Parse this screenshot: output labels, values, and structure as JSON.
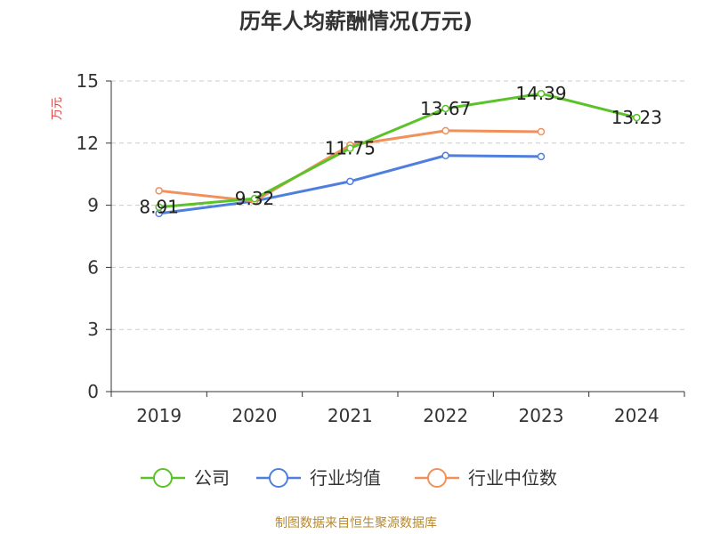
{
  "chart_data": {
    "type": "line",
    "title": "历年人均薪酬情况(万元)",
    "ylabel": "万元",
    "xlabel": "",
    "categories": [
      "2019",
      "2020",
      "2021",
      "2022",
      "2023",
      "2024"
    ],
    "ylim": [
      0,
      15
    ],
    "yticks": [
      "0",
      "3",
      "6",
      "9",
      "12",
      "15"
    ],
    "grid": true,
    "legend_position": "bottom",
    "series": [
      {
        "name": "公司",
        "color": "#5cc229",
        "values": [
          8.91,
          9.32,
          11.75,
          13.67,
          14.39,
          13.23
        ],
        "labels": [
          "8.91",
          "9.32",
          "11.75",
          "13.67",
          "14.39",
          "13.23"
        ]
      },
      {
        "name": "行业均值",
        "color": "#4e7fde",
        "values": [
          8.6,
          9.2,
          10.15,
          11.4,
          11.35,
          null
        ]
      },
      {
        "name": "行业中位数",
        "color": "#f2905a",
        "values": [
          9.7,
          9.2,
          11.9,
          12.6,
          12.55,
          null
        ]
      }
    ]
  },
  "source_text": "制图数据来自恒生聚源数据库",
  "colors": {
    "ylabel": "#e03a3a",
    "source": "#b8892e",
    "grid": "#cccccc",
    "axis": "#333333"
  }
}
